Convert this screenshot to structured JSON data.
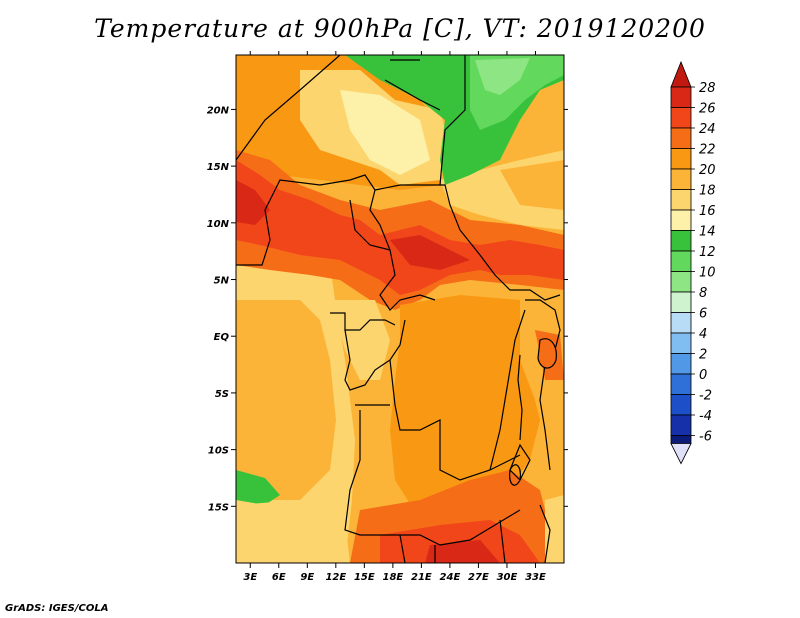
{
  "title": "Temperature at 900hPa [C], VT: 2019120200",
  "footer": "GrADS: IGES/COLA",
  "map": {
    "lon_ticks": [
      "3E",
      "6E",
      "9E",
      "12E",
      "15E",
      "18E",
      "21E",
      "24E",
      "27E",
      "30E",
      "33E"
    ],
    "lat_ticks": [
      "20N",
      "15N",
      "10N",
      "5N",
      "EQ",
      "5S",
      "10S",
      "15S"
    ],
    "lon_range": [
      1.5,
      36.0
    ],
    "lat_range": [
      -20.0,
      24.8
    ]
  },
  "colorbar": {
    "labels": [
      "28",
      "26",
      "24",
      "22",
      "20",
      "18",
      "16",
      "14",
      "12",
      "10",
      "8",
      "6",
      "4",
      "2",
      "0",
      "-2",
      "-4",
      "-6"
    ],
    "colors": [
      "#d92816",
      "#f1461a",
      "#f66d18",
      "#f99813",
      "#fbb437",
      "#fdd56f",
      "#fdf0a8",
      "#38c23c",
      "#62d85c",
      "#8ee583",
      "#cff3cf",
      "#b8dcf6",
      "#80bdf0",
      "#5198e6",
      "#2e6fd8",
      "#1d4fc8",
      "#1530a8",
      "#0d1b78"
    ],
    "top_arrow_color": "#c01a10",
    "bottom_arrow_color": "#e0e0f8"
  }
}
